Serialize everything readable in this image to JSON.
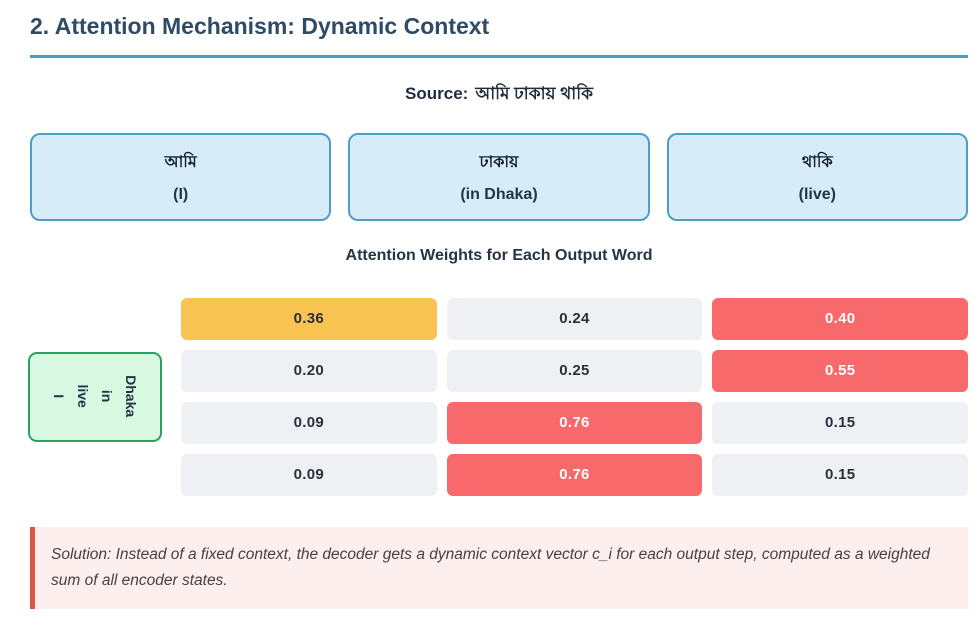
{
  "header": {
    "title": "2. Attention Mechanism: Dynamic Context"
  },
  "source": {
    "label": "Source:",
    "sentence": "আমি ঢাকায় থাকি"
  },
  "source_words": [
    {
      "word": "আমি",
      "gloss": "(I)"
    },
    {
      "word": "ঢাকায়",
      "gloss": "(in Dhaka)"
    },
    {
      "word": "থাকি",
      "gloss": "(live)"
    }
  ],
  "attention": {
    "heading": "Attention Weights for Each Output Word",
    "output_label_lines": [
      "Dhaka",
      "in",
      "live",
      "I"
    ],
    "rows": [
      {
        "cells": [
          {
            "value": "0.36",
            "level": "mid"
          },
          {
            "value": "0.24",
            "level": "low"
          },
          {
            "value": "0.40",
            "level": "high"
          }
        ]
      },
      {
        "cells": [
          {
            "value": "0.20",
            "level": "low"
          },
          {
            "value": "0.25",
            "level": "low"
          },
          {
            "value": "0.55",
            "level": "high"
          }
        ]
      },
      {
        "cells": [
          {
            "value": "0.09",
            "level": "low"
          },
          {
            "value": "0.76",
            "level": "high"
          },
          {
            "value": "0.15",
            "level": "low"
          }
        ]
      },
      {
        "cells": [
          {
            "value": "0.09",
            "level": "low"
          },
          {
            "value": "0.76",
            "level": "high"
          },
          {
            "value": "0.15",
            "level": "low"
          }
        ]
      }
    ]
  },
  "note": {
    "text": "Solution: Instead of a fixed context, the decoder gets a dynamic context vector c_i for each output step, computed as a weighted sum of all encoder states."
  },
  "chart_data": {
    "type": "heatmap",
    "title": "Attention Weights for Each Output Word",
    "x_categories": [
      "আমি (I)",
      "ঢাকায় (in Dhaka)",
      "থাকি (live)"
    ],
    "y_categories": [
      "I",
      "live",
      "in",
      "Dhaka"
    ],
    "values": [
      [
        0.36,
        0.24,
        0.4
      ],
      [
        0.2,
        0.25,
        0.55
      ],
      [
        0.09,
        0.76,
        0.15
      ],
      [
        0.09,
        0.76,
        0.15
      ]
    ],
    "cell_colors": {
      "low": "#eef0f4",
      "mid": "#f9c452",
      "high": "#f7696b"
    }
  },
  "colors": {
    "title": "#2e4b66",
    "title_underline": "#4a9cc2",
    "word_box_bg": "#d7ecf9",
    "word_box_border": "#4d9ec4",
    "output_label_bg": "#d9f8e2",
    "output_label_border": "#2aa15e",
    "note_bg": "#fdefed",
    "note_border": "#dd5345",
    "bottom_divider": "#1d3a52"
  }
}
